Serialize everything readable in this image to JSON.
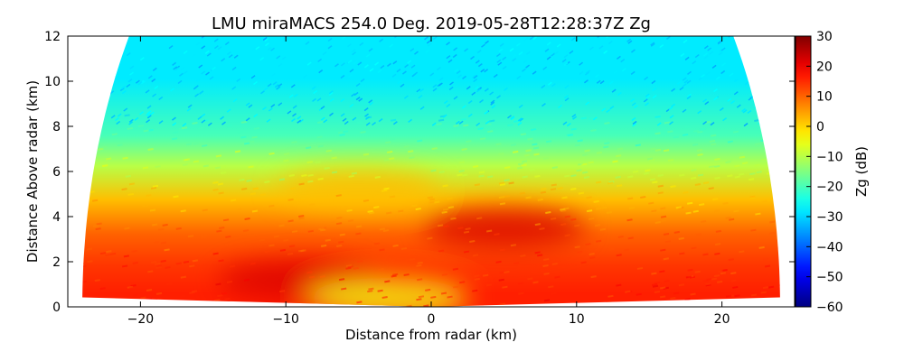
{
  "chart_data": {
    "type": "heatmap",
    "title": "LMU miraMACS 254.0 Deg. 2019-05-28T12:28:37Z  Zg",
    "xlabel": "Distance from radar (km)",
    "ylabel": "Distance Above radar  (km)",
    "xlim": [
      -25,
      25
    ],
    "ylim": [
      0,
      12
    ],
    "xticks": [
      -20,
      -10,
      0,
      10,
      20
    ],
    "yticks": [
      0,
      2,
      4,
      6,
      8,
      10,
      12
    ],
    "colorbar": {
      "label": "Zg (dB)",
      "range": [
        -60,
        30
      ],
      "ticks": [
        -60,
        -50,
        -40,
        -30,
        -20,
        -10,
        0,
        10,
        20,
        30
      ],
      "colormap": "jet"
    },
    "scan_azimuth_deg": 254.0,
    "max_range_km": 24,
    "sector": {
      "elevation_min_deg": 1,
      "elevation_max_deg": 165,
      "left_ground_elevation_deg": 179
    },
    "layers": [
      {
        "from_km": 0,
        "to_km": 1.2,
        "zg_db": 16
      },
      {
        "from_km": 1.2,
        "to_km": 2.5,
        "zg_db": 14
      },
      {
        "from_km": 2.5,
        "to_km": 4.0,
        "zg_db": 10
      },
      {
        "from_km": 4.0,
        "to_km": 5.5,
        "zg_db": 2
      },
      {
        "from_km": 5.5,
        "to_km": 7.0,
        "zg_db": -10
      },
      {
        "from_km": 7.0,
        "to_km": 8.2,
        "zg_db": -20
      },
      {
        "from_km": 8.2,
        "to_km": 12,
        "zg_db": -28
      }
    ],
    "features": [
      {
        "x_km": 5,
        "y_km": 3.5,
        "zg_db": 22
      },
      {
        "x_km": -9,
        "y_km": 1.2,
        "zg_db": 22
      },
      {
        "x_km": -3,
        "y_km": 0.4,
        "zg_db": -5
      },
      {
        "x_km": -5,
        "y_km": 5.2,
        "zg_db": 2
      }
    ]
  }
}
